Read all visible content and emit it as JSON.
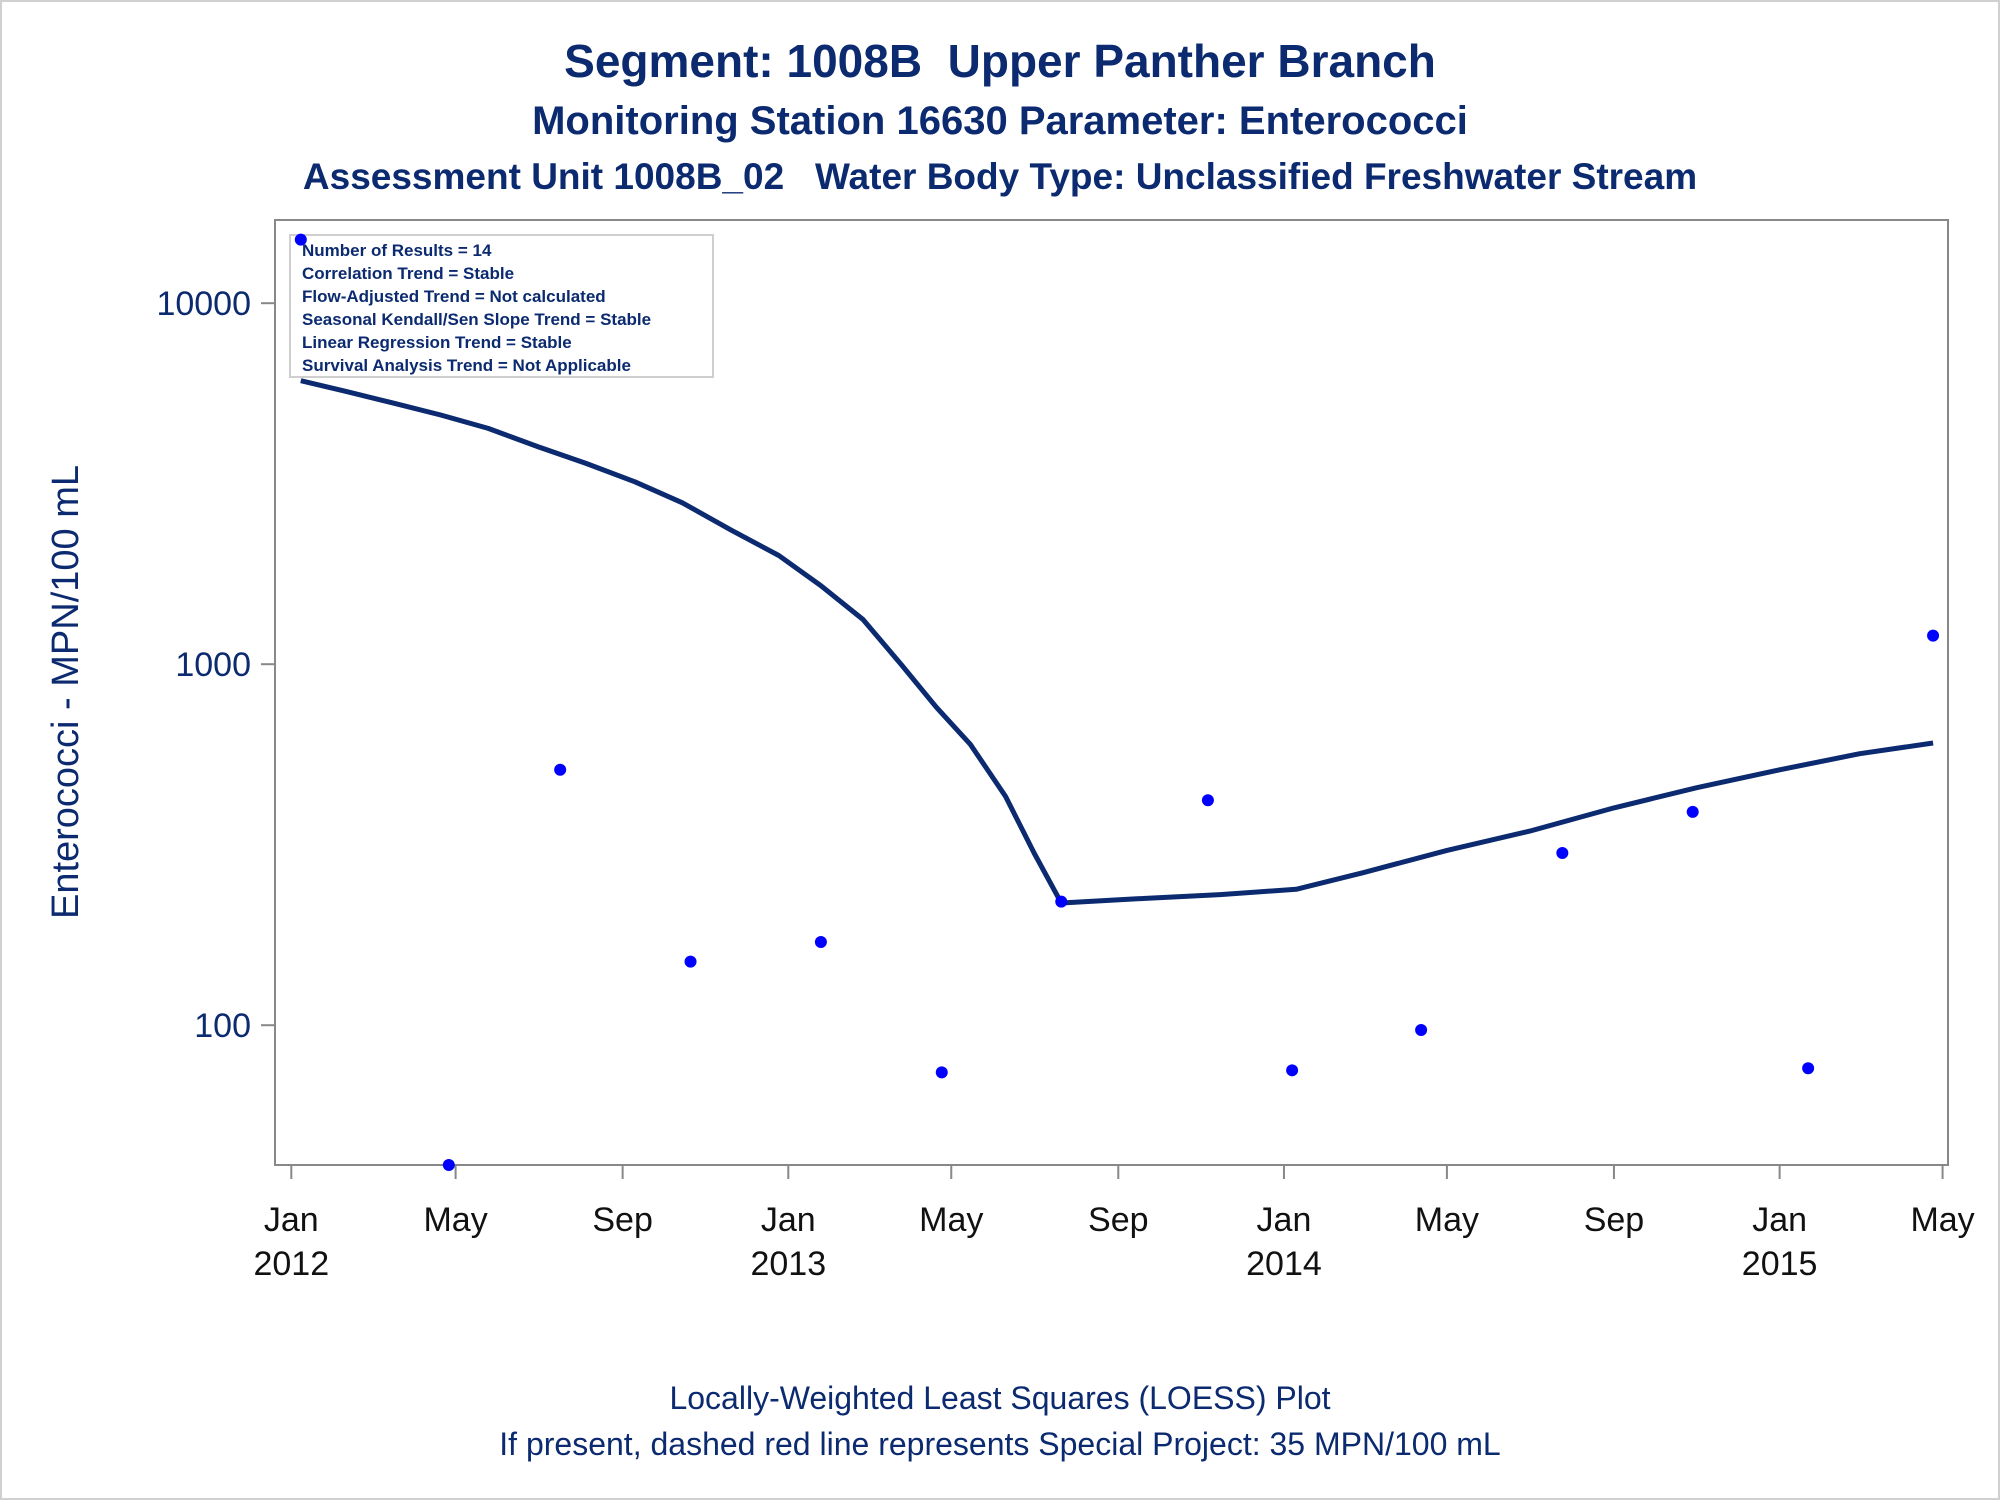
{
  "title": "Segment: 1008B  Upper Panther Branch",
  "subtitle1": "Monitoring Station 16630 Parameter: Enterococci",
  "subtitle2": "Assessment Unit 1008B_02   Water Body Type: Unclassified Freshwater Stream",
  "footnote1": "Locally-Weighted Least Squares (LOESS) Plot",
  "footnote2": "If present, dashed red line represents Special Project: 35 MPN/100 mL",
  "colors": {
    "text": "#0b2a6f",
    "points": "#0000ff",
    "loess": "#0b2a6f",
    "axis": "#888888"
  },
  "chart_data": {
    "type": "scatter",
    "ylabel": "Enterococci - MPN/100 mL",
    "yscale": "log",
    "ylim": [
      41,
      17000
    ],
    "xlim": [
      "2011-12-20",
      "2015-05-05"
    ],
    "yticks": [
      {
        "value": 100,
        "label": "100"
      },
      {
        "value": 1000,
        "label": "1000"
      },
      {
        "value": 10000,
        "label": "10000"
      }
    ],
    "xticks": [
      {
        "date": "2012-01-01",
        "label1": "Jan",
        "label2": "2012"
      },
      {
        "date": "2012-05-01",
        "label1": "May",
        "label2": ""
      },
      {
        "date": "2012-09-01",
        "label1": "Sep",
        "label2": ""
      },
      {
        "date": "2013-01-01",
        "label1": "Jan",
        "label2": "2013"
      },
      {
        "date": "2013-05-01",
        "label1": "May",
        "label2": ""
      },
      {
        "date": "2013-09-01",
        "label1": "Sep",
        "label2": ""
      },
      {
        "date": "2014-01-01",
        "label1": "Jan",
        "label2": "2014"
      },
      {
        "date": "2014-05-01",
        "label1": "May",
        "label2": ""
      },
      {
        "date": "2014-09-01",
        "label1": "Sep",
        "label2": ""
      },
      {
        "date": "2015-01-01",
        "label1": "Jan",
        "label2": "2015"
      },
      {
        "date": "2015-05-01",
        "label1": "May",
        "label2": ""
      }
    ],
    "stats_box": [
      "Number of Results = 14",
      "Correlation Trend = Stable",
      "Flow-Adjusted Trend = Not calculated",
      "Seasonal Kendall/Sen Slope Trend = Stable",
      "Linear Regression Trend = Stable",
      "Survival Analysis Trend = Not Applicable"
    ],
    "series": [
      {
        "type": "scatter",
        "points": [
          {
            "date": "2012-01-08",
            "y": 15000
          },
          {
            "date": "2012-04-26",
            "y": 41
          },
          {
            "date": "2012-07-17",
            "y": 510
          },
          {
            "date": "2012-10-21",
            "y": 150
          },
          {
            "date": "2013-01-25",
            "y": 170
          },
          {
            "date": "2013-04-24",
            "y": 74
          },
          {
            "date": "2013-07-21",
            "y": 220
          },
          {
            "date": "2013-11-06",
            "y": 420
          },
          {
            "date": "2014-01-07",
            "y": 75
          },
          {
            "date": "2014-04-12",
            "y": 97
          },
          {
            "date": "2014-07-25",
            "y": 300
          },
          {
            "date": "2014-10-29",
            "y": 390
          },
          {
            "date": "2015-01-22",
            "y": 76
          },
          {
            "date": "2015-04-24",
            "y": 1200
          }
        ]
      },
      {
        "type": "line",
        "points": [
          {
            "date": "2012-01-08",
            "y": 6100
          },
          {
            "date": "2012-02-10",
            "y": 5700
          },
          {
            "date": "2012-03-15",
            "y": 5300
          },
          {
            "date": "2012-04-20",
            "y": 4900
          },
          {
            "date": "2012-05-25",
            "y": 4500
          },
          {
            "date": "2012-07-01",
            "y": 4000
          },
          {
            "date": "2012-08-05",
            "y": 3600
          },
          {
            "date": "2012-09-10",
            "y": 3200
          },
          {
            "date": "2012-10-15",
            "y": 2800
          },
          {
            "date": "2012-11-20",
            "y": 2350
          },
          {
            "date": "2012-12-25",
            "y": 2000
          },
          {
            "date": "2013-01-25",
            "y": 1650
          },
          {
            "date": "2013-02-25",
            "y": 1330
          },
          {
            "date": "2013-03-25",
            "y": 1000
          },
          {
            "date": "2013-04-20",
            "y": 760
          },
          {
            "date": "2013-05-15",
            "y": 600
          },
          {
            "date": "2013-06-10",
            "y": 430
          },
          {
            "date": "2013-07-01",
            "y": 300
          },
          {
            "date": "2013-07-21",
            "y": 218
          },
          {
            "date": "2013-09-15",
            "y": 224
          },
          {
            "date": "2013-11-15",
            "y": 230
          },
          {
            "date": "2014-01-10",
            "y": 238
          },
          {
            "date": "2014-03-01",
            "y": 265
          },
          {
            "date": "2014-05-01",
            "y": 305
          },
          {
            "date": "2014-07-01",
            "y": 345
          },
          {
            "date": "2014-09-01",
            "y": 400
          },
          {
            "date": "2014-11-01",
            "y": 455
          },
          {
            "date": "2015-01-01",
            "y": 510
          },
          {
            "date": "2015-03-01",
            "y": 565
          },
          {
            "date": "2015-04-24",
            "y": 605
          }
        ]
      }
    ]
  }
}
